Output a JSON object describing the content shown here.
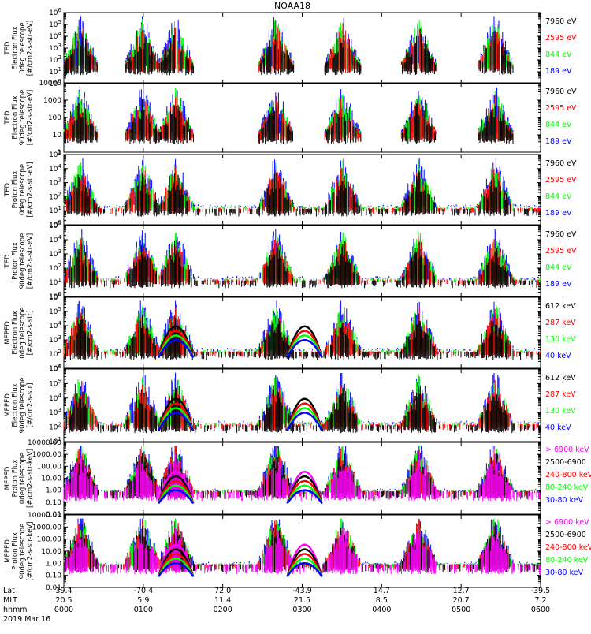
{
  "title": "NOAA18",
  "colors": {
    "blue": "#0000ff",
    "red": "#ff0000",
    "green": "#00ff00",
    "black": "#000000",
    "magenta": "#ff00ff"
  },
  "x_axis": {
    "row_labels": [
      "Lat",
      "MLT",
      "hhmm"
    ],
    "lat": [
      "39.4",
      "-70.4",
      "72.0",
      "-43.9",
      "14.7",
      "12.7",
      "-39.5"
    ],
    "mlt": [
      "20.5",
      "5.9",
      "11.4",
      "21.5",
      "8.5",
      "20.7",
      "7.2"
    ],
    "hhmm": [
      "0000",
      "0100",
      "0200",
      "0300",
      "0400",
      "0500",
      "0600"
    ],
    "date": "2019 Mar 16"
  },
  "chart_data": [
    {
      "type": "scatter",
      "ylabel_lines": [
        "TED",
        "Electron Flux",
        "0deg telescope",
        "[#/cm2-s-str-eV]"
      ],
      "yscale": "log",
      "ylim": [
        1,
        1000000
      ],
      "ytick_labels": [
        "10^0",
        "10^1",
        "10^2",
        "10^3",
        "10^4",
        "10^5",
        "10^6"
      ],
      "legend": [
        {
          "label": "7960 eV",
          "color": "#000000"
        },
        {
          "label": "2595 eV",
          "color": "#ff0000"
        },
        {
          "label": "844 eV",
          "color": "#00ff00"
        },
        {
          "label": "189 eV",
          "color": "#0000ff"
        }
      ]
    },
    {
      "type": "scatter",
      "ylabel_lines": [
        "TED",
        "Electron Flux",
        "90deg telescope",
        "[#/cm2-s-str-eV]"
      ],
      "yscale": "log",
      "ylim": [
        1,
        10000
      ],
      "ytick_labels": [
        "1",
        "10",
        "100",
        "1000",
        "10000"
      ],
      "legend": [
        {
          "label": "7960 eV",
          "color": "#000000"
        },
        {
          "label": "2595 eV",
          "color": "#ff0000"
        },
        {
          "label": "844 eV",
          "color": "#00ff00"
        },
        {
          "label": "189 eV",
          "color": "#0000ff"
        }
      ]
    },
    {
      "type": "scatter",
      "ylabel_lines": [
        "TED",
        "Proton Flux",
        "0deg telescope",
        "[#/cm2-s-str-eV]"
      ],
      "yscale": "log",
      "ylim": [
        1,
        100000
      ],
      "ytick_labels": [
        "10^0",
        "10^1",
        "10^2",
        "10^3",
        "10^4",
        "10^5"
      ],
      "legend": [
        {
          "label": "7960 eV",
          "color": "#000000"
        },
        {
          "label": "2595 eV",
          "color": "#ff0000"
        },
        {
          "label": "844 eV",
          "color": "#00ff00"
        },
        {
          "label": "189 eV",
          "color": "#0000ff"
        }
      ]
    },
    {
      "type": "scatter",
      "ylabel_lines": [
        "TED",
        "Proton Flux",
        "90deg telescope",
        "[#/cm2-s-str-eV]"
      ],
      "yscale": "log",
      "ylim": [
        1,
        100000
      ],
      "ytick_labels": [
        "10^0",
        "10^1",
        "10^2",
        "10^3",
        "10^4",
        "10^5"
      ],
      "legend": [
        {
          "label": "7960 eV",
          "color": "#000000"
        },
        {
          "label": "2595 eV",
          "color": "#ff0000"
        },
        {
          "label": "844 eV",
          "color": "#00ff00"
        },
        {
          "label": "189 eV",
          "color": "#0000ff"
        }
      ]
    },
    {
      "type": "scatter",
      "ylabel_lines": [
        "MEPED",
        "Electron Flux",
        "0deg telescope",
        "[#/cm2-s-str]"
      ],
      "yscale": "log",
      "ylim": [
        10,
        1000000
      ],
      "ytick_labels": [
        "10^1",
        "10^2",
        "10^3",
        "10^4",
        "10^5",
        "10^6"
      ],
      "legend": [
        {
          "label": "612 keV",
          "color": "#000000"
        },
        {
          "label": "287 keV",
          "color": "#ff0000"
        },
        {
          "label": "130 keV",
          "color": "#00ff00"
        },
        {
          "label": "40 keV",
          "color": "#0000ff"
        }
      ]
    },
    {
      "type": "scatter",
      "ylabel_lines": [
        "MEPED",
        "Electron Flux",
        "90deg telescope",
        "[#/cm2-s-str]"
      ],
      "yscale": "log",
      "ylim": [
        10,
        1000000
      ],
      "ytick_labels": [
        "10^1",
        "10^2",
        "10^3",
        "10^4",
        "10^5",
        "10^6"
      ],
      "legend": [
        {
          "label": "612 keV",
          "color": "#000000"
        },
        {
          "label": "287 keV",
          "color": "#ff0000"
        },
        {
          "label": "130 keV",
          "color": "#00ff00"
        },
        {
          "label": "40 keV",
          "color": "#0000ff"
        }
      ]
    },
    {
      "type": "scatter",
      "ylabel_lines": [
        "MEPED",
        "Proton Flux",
        "0deg telescope",
        "[#/cm2-s-str-keV]"
      ],
      "yscale": "log",
      "ylim": [
        0.01,
        10000
      ],
      "ytick_labels": [
        "0.01",
        "0.10",
        "1.00",
        "10.00",
        "100.00",
        "1000.00",
        "10000.00"
      ],
      "legend": [
        {
          "label": "> 6900 keV",
          "color": "#ff00ff"
        },
        {
          "label": "2500-6900",
          "color": "#000000"
        },
        {
          "label": "240-800 keV",
          "color": "#ff0000"
        },
        {
          "label": "80-240 keV",
          "color": "#00ff00"
        },
        {
          "label": "30-80 keV",
          "color": "#0000ff"
        }
      ]
    },
    {
      "type": "scatter",
      "ylabel_lines": [
        "MEPED",
        "Proton Flux",
        "90deg telescope",
        "[#/cm2-s-str-keV]"
      ],
      "yscale": "log",
      "ylim": [
        0.01,
        10000
      ],
      "ytick_labels": [
        "0.01",
        "0.10",
        "1.00",
        "10.00",
        "100.00",
        "1000.00",
        "10000.00"
      ],
      "legend": [
        {
          "label": "> 6900 keV",
          "color": "#ff00ff"
        },
        {
          "label": "2500-6900",
          "color": "#000000"
        },
        {
          "label": "240-800 keV",
          "color": "#ff0000"
        },
        {
          "label": "80-240 keV",
          "color": "#00ff00"
        },
        {
          "label": "30-80 keV",
          "color": "#0000ff"
        }
      ]
    }
  ]
}
